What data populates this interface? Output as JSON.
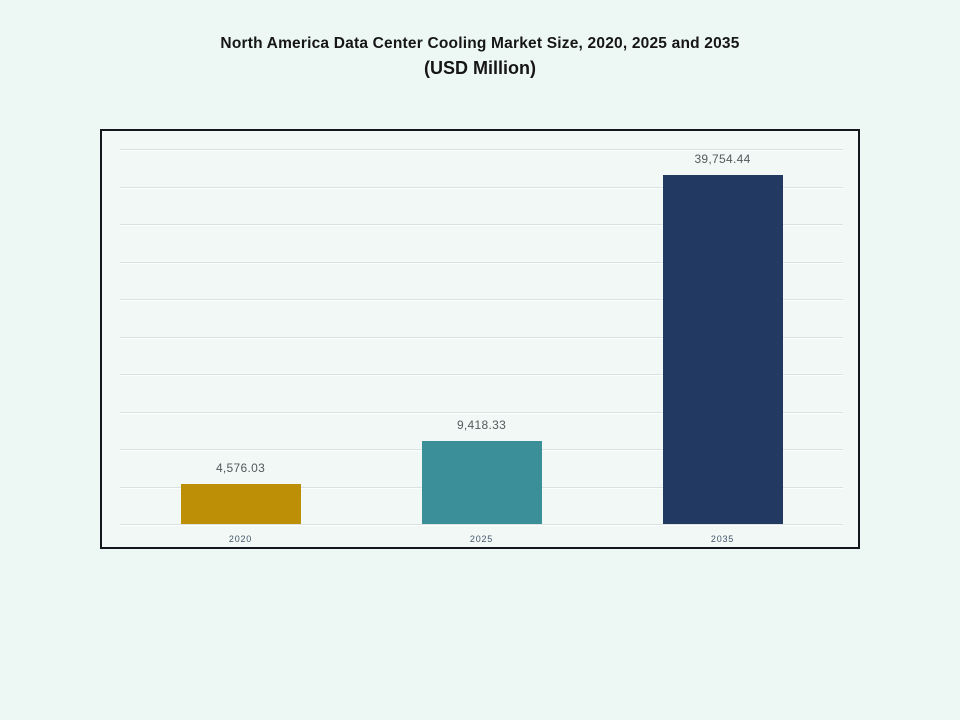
{
  "page": {
    "background_color": "#edf7f4",
    "frame_border_color": "#15151d",
    "gridline_color": "#d9e2e0"
  },
  "title": {
    "line1": "North America Data Center Cooling Market Size, 2020, 2025 and 2035",
    "line2": "(USD Million)"
  },
  "chart_data": {
    "type": "bar",
    "title": "North America Data Center Cooling Market Size, 2020, 2025 and 2035 (USD Million)",
    "categories": [
      "2020",
      "2025",
      "2035"
    ],
    "values": [
      4576.03,
      9418.33,
      39754.44
    ],
    "value_labels": [
      "4,576.03",
      "9,418.33",
      "39,754.44"
    ],
    "bar_colors": [
      "#bd8f06",
      "#3a8f99",
      "#223a61"
    ],
    "xlabel": "",
    "ylabel": "",
    "ylim": [
      0,
      42700
    ],
    "gridline_count": 11,
    "grid": true,
    "legend": false,
    "axis_tick_labels_shown": false
  }
}
